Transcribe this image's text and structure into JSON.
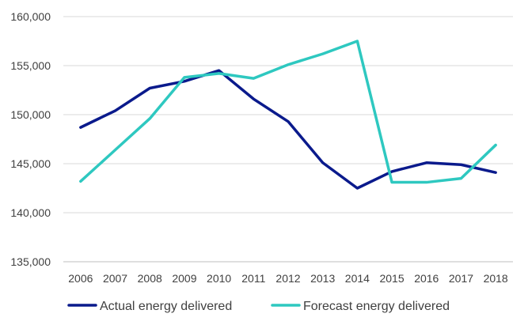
{
  "chart_data": {
    "type": "line",
    "title": "",
    "xlabel": "",
    "ylabel": "",
    "categories": [
      "2006",
      "2007",
      "2008",
      "2009",
      "2010",
      "2011",
      "2012",
      "2013",
      "2014",
      "2015",
      "2016",
      "2017",
      "2018"
    ],
    "ylim": [
      135000,
      160000
    ],
    "yticks": [
      135000,
      140000,
      145000,
      150000,
      155000,
      160000
    ],
    "ytick_labels": [
      "135,000",
      "140,000",
      "145,000",
      "150,000",
      "155,000",
      "160,000"
    ],
    "grid": "horizontal",
    "legend_position": "bottom",
    "series": [
      {
        "name": "Actual energy delivered",
        "color": "#0a1a8c",
        "values": [
          148700,
          150400,
          152700,
          153400,
          154500,
          151600,
          149300,
          145100,
          142500,
          144200,
          145100,
          144900,
          144100
        ]
      },
      {
        "name": "Forecast energy delivered",
        "color": "#2ec8c0",
        "values": [
          143200,
          146400,
          149600,
          153800,
          154200,
          153700,
          155100,
          156200,
          157500,
          143100,
          143100,
          143500,
          146900
        ]
      }
    ]
  }
}
